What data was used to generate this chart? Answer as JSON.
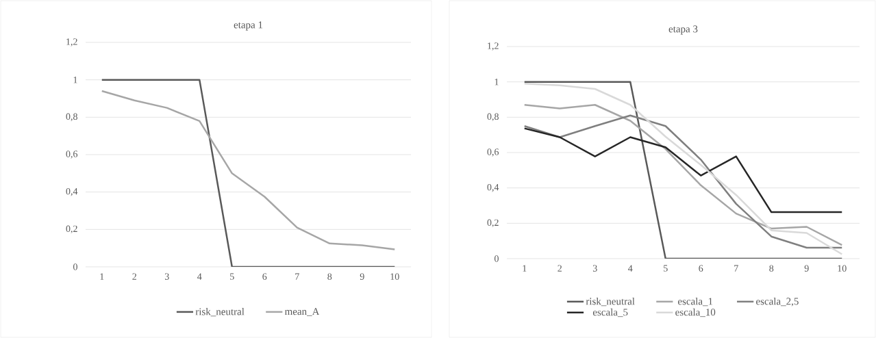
{
  "chart_data": [
    {
      "type": "line",
      "title": "etapa 1",
      "categories": [
        "1",
        "2",
        "3",
        "4",
        "5",
        "6",
        "7",
        "8",
        "9",
        "10"
      ],
      "series": [
        {
          "name": "risk_neutral",
          "color": "#595959",
          "values": [
            1,
            1,
            1,
            1,
            0,
            0,
            0,
            0,
            0,
            0
          ]
        },
        {
          "name": "mean_A",
          "color": "#a6a6a6",
          "values": [
            0.94,
            0.89,
            0.85,
            0.78,
            0.5,
            0.375,
            0.21,
            0.125,
            0.115,
            0.093
          ]
        }
      ],
      "ylim": [
        0,
        1.2
      ],
      "yticks": [
        0,
        {
          "value": 0.2,
          "label": "0,2"
        },
        {
          "value": 0.4,
          "label": "0,4"
        },
        {
          "value": 0.6,
          "label": "0,6"
        },
        {
          "value": 0.8,
          "label": "0,8"
        },
        1,
        {
          "value": 1.2,
          "label": "1,2"
        }
      ],
      "grid": "y",
      "legend": "bottom",
      "marker": "none",
      "line_style": "solid"
    },
    {
      "type": "line",
      "title": "etapa 3",
      "categories": [
        "1",
        "2",
        "3",
        "4",
        "5",
        "6",
        "7",
        "8",
        "9",
        "10"
      ],
      "series": [
        {
          "name": "risk_neutral",
          "color": "#595959",
          "values": [
            1,
            1,
            1,
            1,
            0,
            0,
            0,
            0,
            0,
            0
          ]
        },
        {
          "name": "escala_1",
          "color": "#a6a6a6",
          "values": [
            0.87,
            0.85,
            0.87,
            0.78,
            0.62,
            0.415,
            0.255,
            0.17,
            0.18,
            0.077
          ]
        },
        {
          "name": "escala_2,5",
          "color": "#7f7f7f",
          "values": [
            0.75,
            0.687,
            0.75,
            0.81,
            0.75,
            0.56,
            0.31,
            0.125,
            0.062,
            0.062
          ]
        },
        {
          "name": "escala_5",
          "color": "#262626",
          "values": [
            0.737,
            0.687,
            0.578,
            0.687,
            0.63,
            0.47,
            0.578,
            0.263,
            0.263,
            0.263
          ]
        },
        {
          "name": "escala_10",
          "color": "#d9d9d9",
          "values": [
            0.99,
            0.98,
            0.96,
            0.87,
            0.69,
            0.53,
            0.36,
            0.16,
            0.145,
            0.025
          ]
        }
      ],
      "ylim": [
        0,
        1.2
      ],
      "yticks": [
        0,
        {
          "value": 0.2,
          "label": "0,2"
        },
        {
          "value": 0.4,
          "label": "0,4"
        },
        {
          "value": 0.6,
          "label": "0,6"
        },
        {
          "value": 0.8,
          "label": "0,8"
        },
        1,
        {
          "value": 1.2,
          "label": "1,2"
        }
      ],
      "grid": "y",
      "legend": "bottom",
      "marker": "none",
      "line_style": "solid"
    }
  ]
}
